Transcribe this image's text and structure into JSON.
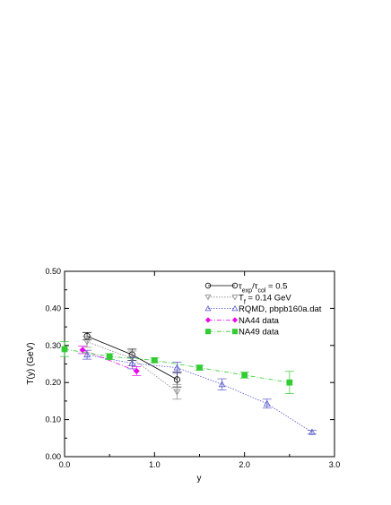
{
  "chart_data": {
    "type": "scatter",
    "xlabel": "y",
    "ylabel": "T(y) (GeV)",
    "xlim": [
      0.0,
      3.0
    ],
    "ylim": [
      0.0,
      0.5
    ],
    "x_ticks": [
      "0.0",
      "1.0",
      "2.0",
      "3.0"
    ],
    "y_ticks": [
      "0.00",
      "0.10",
      "0.20",
      "0.30",
      "0.40",
      "0.50"
    ],
    "x_tick_values": [
      0.0,
      1.0,
      2.0,
      3.0
    ],
    "y_tick_values": [
      0.0,
      0.1,
      0.2,
      0.3,
      0.4,
      0.5
    ],
    "legend_placement": "top-right",
    "grid": false,
    "series": [
      {
        "legend_main": "τ",
        "legend_sub1": "exp",
        "legend_mid": "/τ",
        "legend_sub2": "col",
        "legend_tail": " = 0.5",
        "marker": "circle",
        "color": "#000000",
        "line": "solid",
        "x": [
          0.25,
          0.75,
          1.25
        ],
        "y": [
          0.325,
          0.275,
          0.208
        ],
        "err": [
          0.01,
          0.015,
          0.02
        ]
      },
      {
        "legend_main": "T",
        "legend_sub1": "f",
        "legend_tail": " = 0.14 GeV",
        "marker": "triangle-down",
        "color": "#888888",
        "line": "dotted",
        "x": [
          0.25,
          0.75,
          1.25
        ],
        "y": [
          0.31,
          0.265,
          0.175
        ],
        "err": [
          0.015,
          0.02,
          0.02
        ]
      },
      {
        "legend_main": "RQMD, pbpb160a.dat",
        "marker": "triangle-up",
        "color": "#5555cc",
        "line": "dotted",
        "x": [
          0.25,
          0.75,
          1.25,
          1.75,
          2.25,
          2.75
        ],
        "y": [
          0.275,
          0.252,
          0.24,
          0.195,
          0.143,
          0.066
        ],
        "err": [
          0.012,
          0.015,
          0.015,
          0.015,
          0.012,
          0.005
        ]
      },
      {
        "legend_main": "NA44 data",
        "marker": "diamond",
        "color": "#ee00ee",
        "line": "dashdot",
        "x": [
          0.2,
          0.8
        ],
        "y": [
          0.288,
          0.231
        ],
        "err": [
          0.01,
          0.012
        ]
      },
      {
        "legend_main": "NA49 data",
        "marker": "square",
        "color": "#33cc33",
        "line": "dashdot",
        "x": [
          0.0,
          0.5,
          1.0,
          1.5,
          2.0,
          2.5
        ],
        "y": [
          0.29,
          0.27,
          0.26,
          0.24,
          0.22,
          0.2
        ],
        "err": [
          0.02,
          0.008,
          0.006,
          0.006,
          0.008,
          0.03
        ]
      }
    ]
  }
}
